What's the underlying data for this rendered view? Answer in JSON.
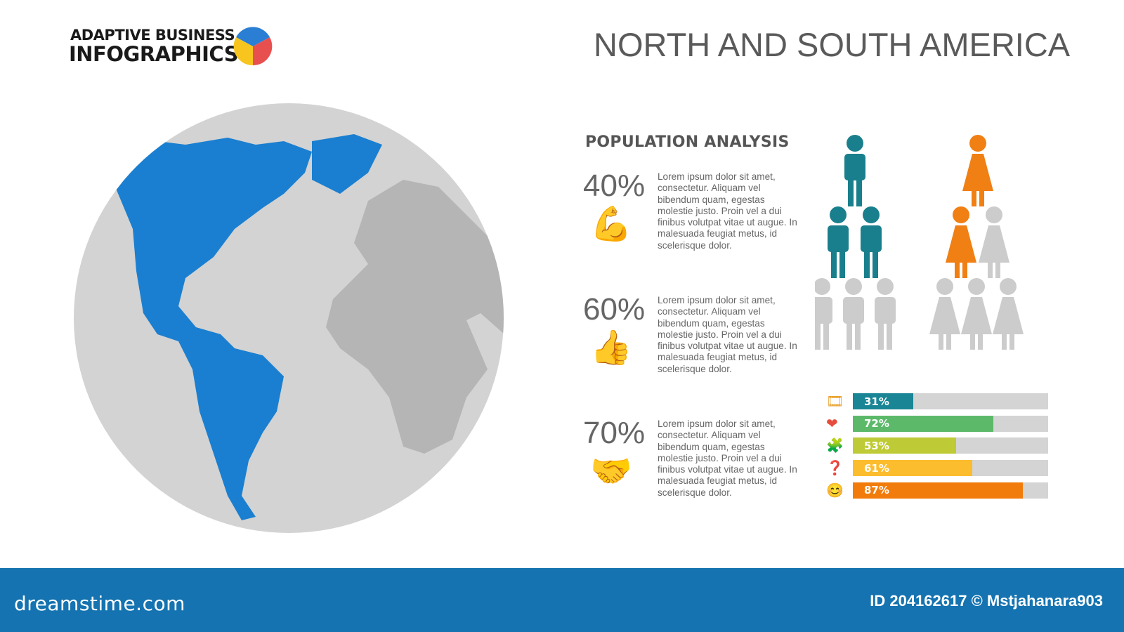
{
  "brand": {
    "line1": "ADAPTIVE BUSINESS",
    "line2": "INFOGRAPHICS",
    "logo_colors": [
      "#2a7fd4",
      "#e8504f",
      "#f7c51e"
    ]
  },
  "title": "NORTH AND SOUTH AMERICA",
  "section_title": "POPULATION ANALYSIS",
  "colors": {
    "americas": "#1a7fd0",
    "globe": "#d3d3d3",
    "land": "#b5b5b5",
    "men": "#1a7f8c",
    "women": "#f07f14",
    "inactive": "#cccccc",
    "footer": "#1473b0"
  },
  "stats": [
    {
      "percent": "40%",
      "icon": "arm-wrestling-icon",
      "text": "Lorem ipsum dolor sit amet, consectetur. Aliquam vel bibendum quam, egestas molestie justo. Proin vel a dui finibus volutpat vitae ut augue. In malesuada feugiat metus, id scelerisque dolor."
    },
    {
      "percent": "60%",
      "icon": "thumbs-up-chat-icon",
      "text": "Lorem ipsum dolor sit amet, consectetur. Aliquam vel bibendum quam, egestas molestie justo. Proin vel a dui finibus volutpat vitae ut augue. In malesuada feugiat metus, id scelerisque dolor."
    },
    {
      "percent": "70%",
      "icon": "handshake-icon",
      "text": "Lorem ipsum dolor sit amet, consectetur. Aliquam vel bibendum quam, egestas molestie justo. Proin vel a dui finibus volutpat vitae ut augue. In malesuada feugiat metus, id scelerisque dolor."
    }
  ],
  "people": {
    "men": {
      "active": 3,
      "total": 6
    },
    "women": {
      "active": 2,
      "total": 6
    }
  },
  "bars": [
    {
      "label": "31%",
      "value": 31,
      "color": "#1a8595",
      "icon": "video-browser-icon"
    },
    {
      "label": "72%",
      "value": 72,
      "color": "#5cb96a",
      "icon": "heart-icon"
    },
    {
      "label": "53%",
      "value": 53,
      "color": "#bfcb36",
      "icon": "puzzle-icon"
    },
    {
      "label": "61%",
      "value": 61,
      "color": "#fbbd2e",
      "icon": "question-icon"
    },
    {
      "label": "87%",
      "value": 87,
      "color": "#f27c0b",
      "icon": "face-icon"
    }
  ],
  "footer": {
    "site": "dreamstime.com",
    "id": "ID 204162617 © Mstjahanara903"
  }
}
